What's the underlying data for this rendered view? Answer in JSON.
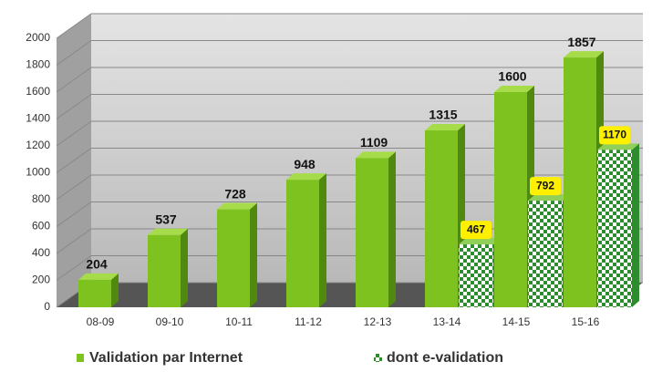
{
  "chart_data": {
    "type": "bar",
    "categories": [
      "08-09",
      "09-10",
      "10-11",
      "11-12",
      "12-13",
      "13-14",
      "14-15",
      "15-16"
    ],
    "series": [
      {
        "name": "Validation par Internet",
        "color": "#7dc21e",
        "values": [
          204,
          537,
          728,
          948,
          1109,
          1315,
          1600,
          1857
        ]
      },
      {
        "name": "dont e-validation",
        "color": "#2e8b2e",
        "values": [
          null,
          null,
          null,
          null,
          null,
          467,
          792,
          1170
        ]
      }
    ],
    "ylim": [
      0,
      2000
    ],
    "yticks": [
      0,
      200,
      400,
      600,
      800,
      1000,
      1200,
      1400,
      1600,
      1800,
      2000
    ],
    "grid": true
  }
}
